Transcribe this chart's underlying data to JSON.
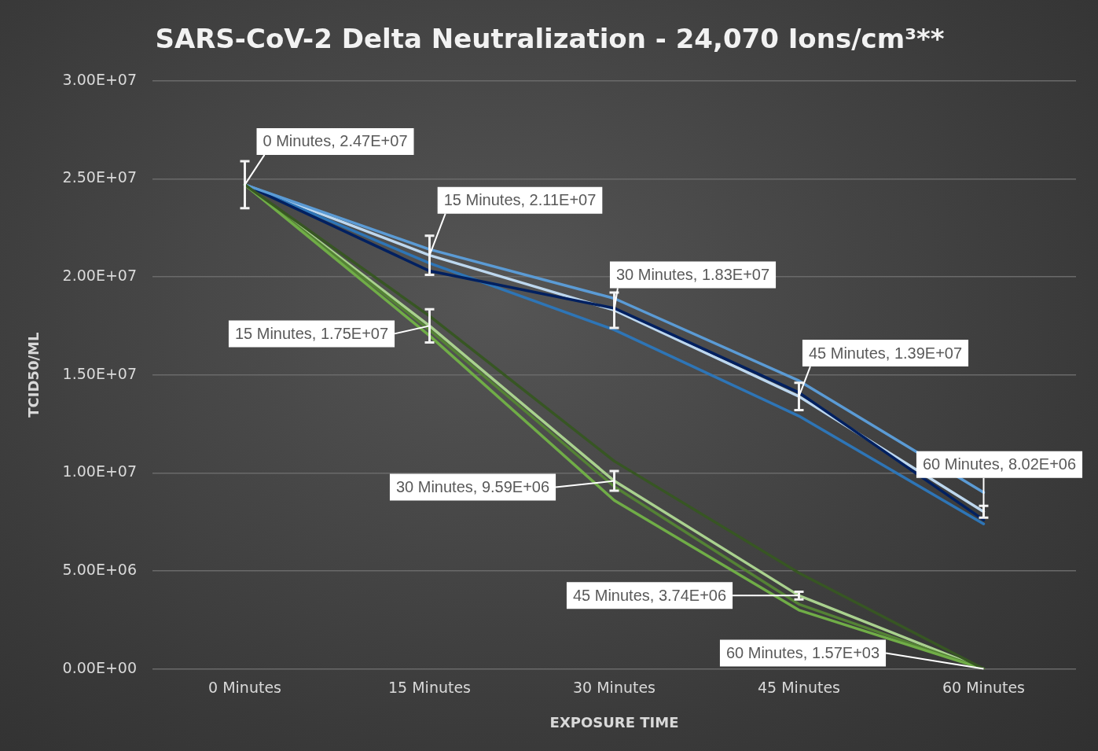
{
  "chart_data": {
    "type": "line",
    "title": "SARS-CoV-2 Delta Neutralization - 24,070 Ions/cm³**",
    "xlabel": "EXPOSURE TIME",
    "ylabel": "TCID50/ML",
    "categories": [
      "0 Minutes",
      "15 Minutes",
      "30 Minutes",
      "45 Minutes",
      "60 Minutes"
    ],
    "series": [
      {
        "color": "#375623",
        "values": [
          24700000,
          18000000,
          10600000,
          4900000,
          0
        ]
      },
      {
        "color": "#70ad47",
        "values": [
          24700000,
          17000000,
          8600000,
          3000000,
          0
        ]
      },
      {
        "color": "#548235",
        "values": [
          24700000,
          17300000,
          9300000,
          3300000,
          0
        ]
      },
      {
        "color": "#a9d18e",
        "values": [
          24700000,
          17500000,
          9590000,
          3740000,
          1570
        ],
        "errors": [
          null,
          850000,
          500000,
          200000,
          null
        ],
        "value_labels": [
          null,
          ", 1.75E+07",
          ", 9.59E+06",
          ", 3.74E+06",
          ", 1.57E+03"
        ]
      },
      {
        "color": "#5b9bd5",
        "values": [
          24700000,
          21400000,
          18900000,
          14700000,
          9000000
        ]
      },
      {
        "color": "#002060",
        "values": [
          24700000,
          20300000,
          18400000,
          14100000,
          7600000
        ]
      },
      {
        "color": "#2e75b6",
        "values": [
          24700000,
          20700000,
          17300000,
          12900000,
          7400000
        ]
      },
      {
        "color": "#bdd7ee",
        "values": [
          24700000,
          21100000,
          18300000,
          13900000,
          8020000
        ],
        "errors": [
          1200000,
          1000000,
          900000,
          700000,
          300000
        ],
        "value_labels": [
          ", 2.47E+07",
          ", 2.11E+07",
          ", 1.83E+07",
          ", 1.39E+07",
          ", 8.02E+06"
        ]
      }
    ],
    "ylim": [
      0,
      30000000
    ],
    "yticks": [
      {
        "value": 0,
        "label": "0.00E+00"
      },
      {
        "value": 5000000,
        "label": "5.00E+06"
      },
      {
        "value": 10000000,
        "label": "1.00E+07"
      },
      {
        "value": 15000000,
        "label": "1.50E+07"
      },
      {
        "value": 20000000,
        "label": "2.00E+07"
      },
      {
        "value": 25000000,
        "label": "2.50E+07"
      },
      {
        "value": 30000000,
        "label": "3.00E+07"
      }
    ],
    "grid": "y",
    "legend": false,
    "marker": "none",
    "line_style": "solid"
  }
}
